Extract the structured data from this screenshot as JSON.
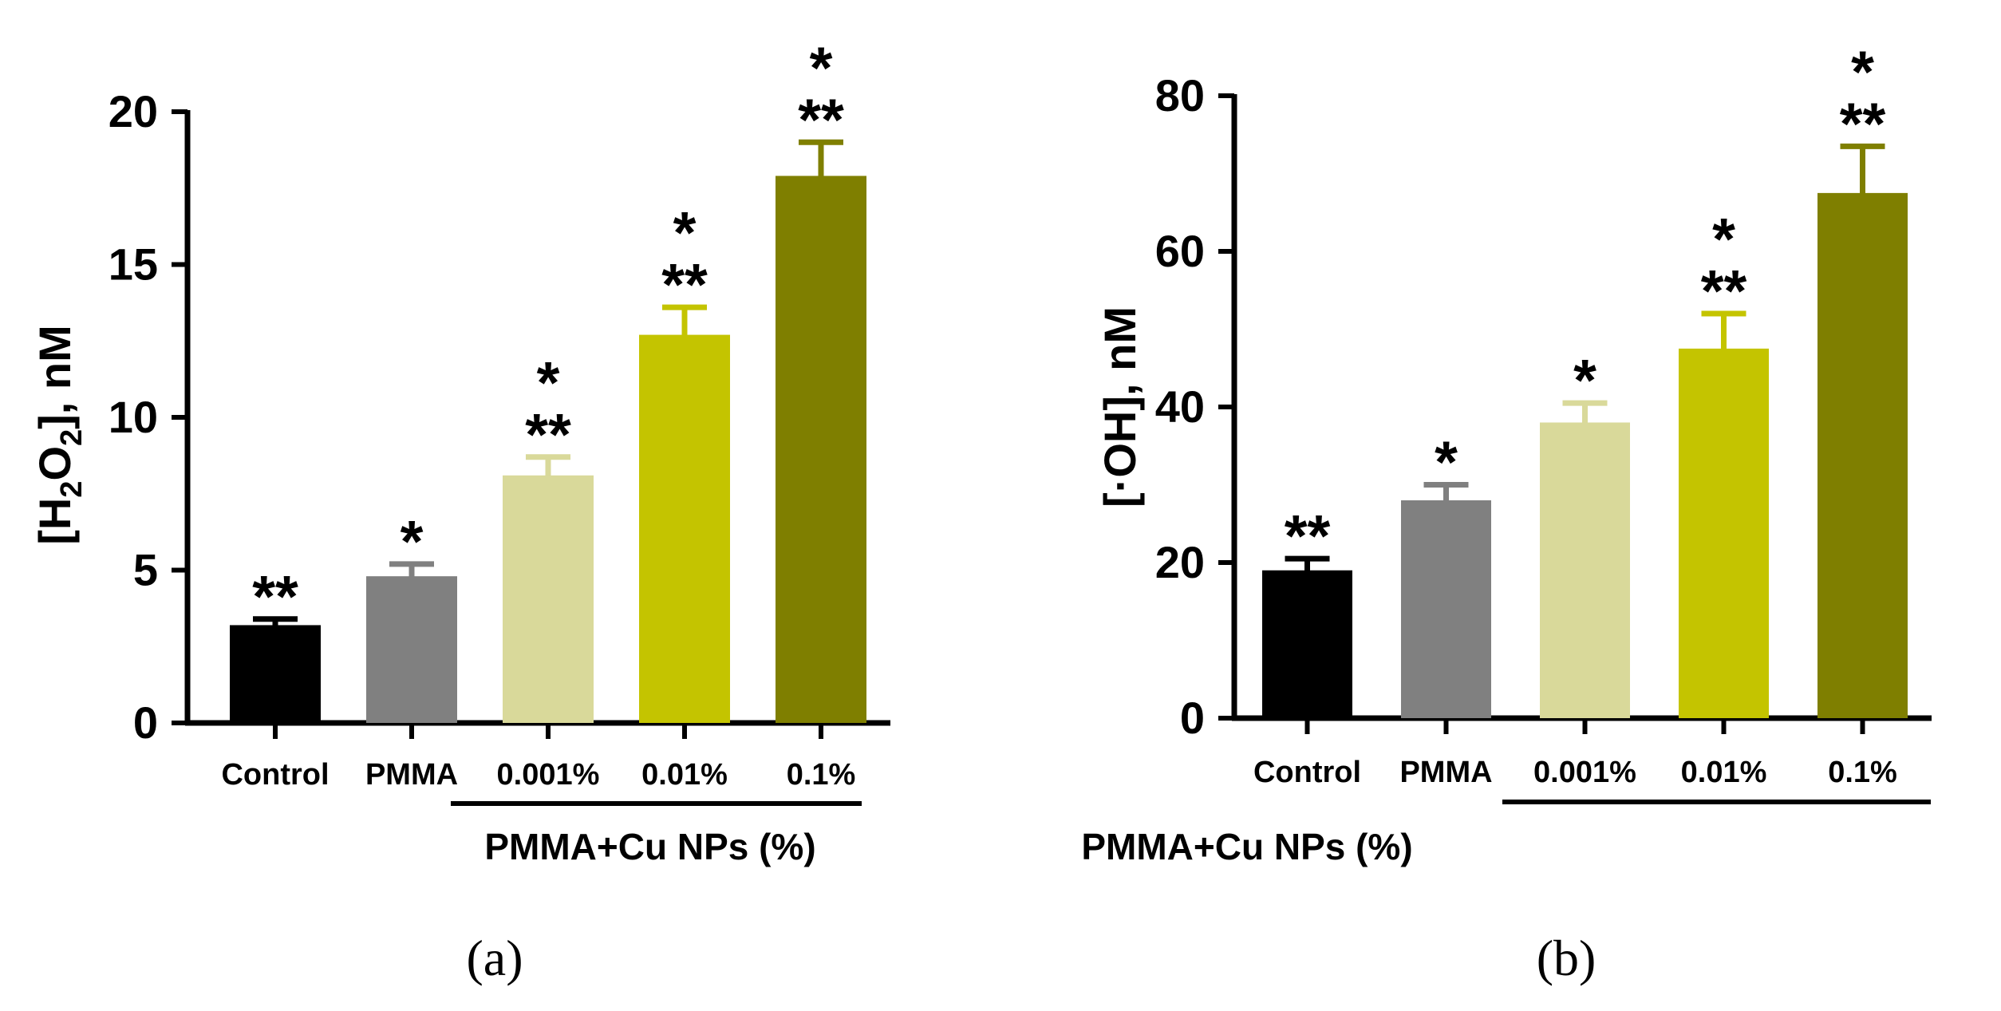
{
  "chart_data": [
    {
      "type": "bar",
      "panel_label": "(a)",
      "ylabel": {
        "prefix": "[H",
        "sub1": "2",
        "mid": "O",
        "sub2": "2",
        "suffix": "], nM"
      },
      "ylim": [
        0,
        20
      ],
      "yticks": [
        "0",
        "5",
        "10",
        "15",
        "20"
      ],
      "categories": [
        "Control",
        "PMMA",
        "0.001%",
        "0.01%",
        "0.1%"
      ],
      "values": [
        3.2,
        4.8,
        8.1,
        12.7,
        17.9
      ],
      "errors": [
        0.2,
        0.4,
        0.6,
        0.9,
        1.1
      ],
      "colors": [
        "#000000",
        "#808080",
        "#d9d99a",
        "#c4c400",
        "#7f7f00"
      ],
      "significance_top": [
        "",
        "",
        "*",
        "*",
        "*"
      ],
      "significance_bottom": [
        "**",
        "*",
        "**",
        "**",
        "**"
      ],
      "group_label": "PMMA+Cu NPs (%)"
    },
    {
      "type": "bar",
      "panel_label": "(b)",
      "ylabel": {
        "text": "[·OH], nM"
      },
      "ylim": [
        0,
        80
      ],
      "yticks": [
        "0",
        "20",
        "40",
        "60",
        "80"
      ],
      "categories": [
        "Control",
        "PMMA",
        "0.001%",
        "0.01%",
        "0.1%"
      ],
      "values": [
        19,
        28,
        38,
        47.5,
        67.5
      ],
      "errors": [
        1.5,
        2,
        2.5,
        4.5,
        6
      ],
      "colors": [
        "#000000",
        "#808080",
        "#d9d99a",
        "#c4c400",
        "#7f7f00"
      ],
      "significance_top": [
        "",
        "",
        "",
        "*",
        "*"
      ],
      "significance_bottom": [
        "**",
        "*",
        "*",
        "**",
        "**"
      ],
      "group_label": "PMMA+Cu NPs (%)"
    }
  ]
}
